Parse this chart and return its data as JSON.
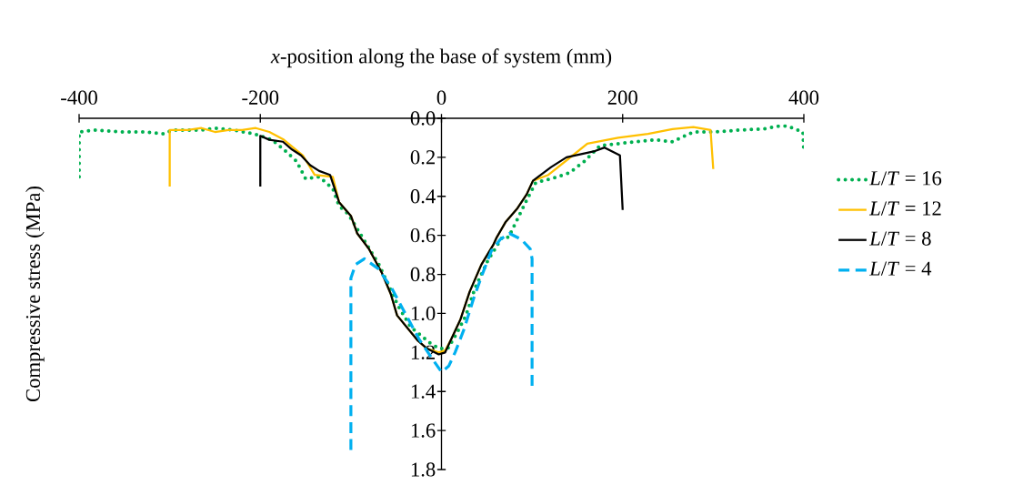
{
  "chart_data": {
    "type": "line",
    "xlabel": "*x*-position along the base of system (mm)",
    "ylabel": "Compressive stress (MPa)",
    "xlim": [
      -400,
      400
    ],
    "xticks": [
      -400,
      -200,
      0,
      200,
      400
    ],
    "ylim": [
      1.8,
      0.0
    ],
    "yticks": [
      {
        "value": 0.0,
        "label": "0.0"
      },
      0.2,
      0.4,
      0.6,
      0.8,
      {
        "value": 1.0,
        "label": "1.0"
      },
      1.2,
      1.4,
      1.6,
      1.8
    ],
    "legend": "right",
    "series": [
      {
        "name": "*L*/*T* = 16",
        "color": "#00b050",
        "line_style": "dotted",
        "x": [
          -400,
          -400,
          -384,
          -350,
          -327,
          -307,
          -297,
          -264,
          -250,
          -230,
          -207,
          -187,
          -174,
          -160,
          -150,
          -135,
          -120,
          -113,
          -103,
          -86,
          -69,
          -59,
          -48,
          -34,
          -13,
          -3,
          7,
          17,
          27,
          37,
          51,
          67,
          74,
          94,
          104,
          121,
          141,
          158,
          175,
          195,
          215,
          235,
          255,
          278,
          302,
          329,
          355,
          372,
          382,
          399,
          400
        ],
        "values": [
          0.3,
          0.07,
          0.06,
          0.07,
          0.07,
          0.08,
          0.06,
          0.06,
          0.05,
          0.06,
          0.08,
          0.11,
          0.16,
          0.22,
          0.31,
          0.3,
          0.36,
          0.45,
          0.49,
          0.62,
          0.75,
          0.85,
          0.96,
          1.07,
          1.15,
          1.18,
          1.18,
          1.1,
          1.01,
          0.87,
          0.73,
          0.61,
          0.61,
          0.42,
          0.33,
          0.31,
          0.28,
          0.22,
          0.14,
          0.13,
          0.12,
          0.11,
          0.12,
          0.07,
          0.07,
          0.06,
          0.055,
          0.04,
          0.04,
          0.07,
          0.17
        ]
      },
      {
        "name": "*L*/*T* = 12",
        "color": "#ffc000",
        "line_style": "solid",
        "x": [
          -300,
          -300,
          -280,
          -265,
          -250,
          -235,
          -220,
          -205,
          -190,
          -174,
          -153,
          -140,
          -120,
          -113,
          -100,
          -93,
          -80,
          -66,
          -56,
          -49,
          -26,
          -16,
          -3,
          4,
          11,
          21,
          31,
          44,
          57,
          61,
          71,
          84,
          94,
          101,
          118,
          145,
          161,
          195,
          228,
          255,
          278,
          297,
          300
        ],
        "values": [
          0.35,
          0.06,
          0.06,
          0.05,
          0.07,
          0.06,
          0.06,
          0.05,
          0.07,
          0.11,
          0.19,
          0.29,
          0.3,
          0.43,
          0.5,
          0.59,
          0.67,
          0.79,
          0.9,
          1.01,
          1.14,
          1.18,
          1.2,
          1.19,
          1.13,
          1.03,
          0.89,
          0.75,
          0.65,
          0.61,
          0.53,
          0.46,
          0.39,
          0.32,
          0.29,
          0.19,
          0.13,
          0.1,
          0.08,
          0.055,
          0.045,
          0.06,
          0.26
        ]
      },
      {
        "name": "*L*/*T* = 8",
        "color": "#000000",
        "line_style": "solid",
        "x": [
          -200,
          -200,
          -190,
          -175,
          -165,
          -155,
          -145,
          -135,
          -123,
          -113,
          -100,
          -93,
          -80,
          -66,
          -56,
          -49,
          -26,
          -16,
          -3,
          4,
          11,
          21,
          31,
          44,
          57,
          61,
          71,
          84,
          94,
          101,
          121,
          138,
          168,
          180,
          197,
          200
        ],
        "values": [
          0.35,
          0.09,
          0.11,
          0.12,
          0.16,
          0.19,
          0.24,
          0.27,
          0.29,
          0.43,
          0.5,
          0.59,
          0.67,
          0.79,
          0.9,
          1.01,
          1.14,
          1.18,
          1.21,
          1.2,
          1.13,
          1.03,
          0.89,
          0.75,
          0.65,
          0.61,
          0.53,
          0.46,
          0.39,
          0.32,
          0.25,
          0.2,
          0.17,
          0.15,
          0.19,
          0.47
        ]
      },
      {
        "name": "*L*/*T* = 4",
        "color": "#00b0f0",
        "line_style": "dashed",
        "x": [
          -100,
          -100,
          -95,
          -85,
          -70,
          -55,
          -40,
          -25,
          -12,
          0,
          8,
          15,
          25,
          35,
          45,
          55,
          65,
          75,
          88,
          98,
          100,
          100
        ],
        "values": [
          1.7,
          0.82,
          0.75,
          0.72,
          0.77,
          0.87,
          1.0,
          1.13,
          1.22,
          1.3,
          1.27,
          1.2,
          1.08,
          0.93,
          0.8,
          0.68,
          0.62,
          0.59,
          0.62,
          0.67,
          0.72,
          1.38
        ]
      }
    ]
  }
}
